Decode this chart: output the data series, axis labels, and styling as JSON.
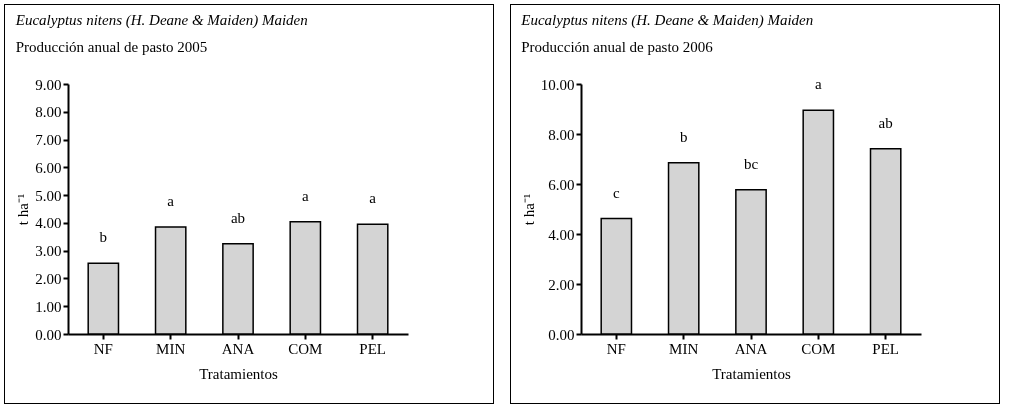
{
  "chart_data": [
    {
      "type": "bar",
      "title": "Eucalyptus nitens (H. Deane & Maiden) Maiden",
      "subtitle": "Producción anual de pasto 2005",
      "xlabel": "Tratamientos",
      "ylabel": "t ha⁻¹",
      "categories": [
        "NF",
        "MIN",
        "ANA",
        "COM",
        "PEL"
      ],
      "values": [
        2.55,
        3.85,
        3.25,
        4.04,
        3.95
      ],
      "color": "#d4d4d4",
      "ylim": [
        0,
        9
      ],
      "yticks": [
        {
          "value": 0,
          "label": "0.00"
        },
        {
          "value": 1,
          "label": "1.00"
        },
        {
          "value": 2,
          "label": "2.00"
        },
        {
          "value": 3,
          "label": "3.00"
        },
        {
          "value": 4,
          "label": "4.00"
        },
        {
          "value": 5,
          "label": "5.00"
        },
        {
          "value": 6,
          "label": "6.00"
        },
        {
          "value": 7,
          "label": "7.00"
        },
        {
          "value": 8,
          "label": "8.00"
        },
        {
          "value": 9,
          "label": "9.00"
        }
      ],
      "annotations": [
        "b",
        "a",
        "ab",
        "a",
        "a"
      ]
    },
    {
      "type": "bar",
      "title": "Eucalyptus nitens (H. Deane & Maiden) Maiden",
      "subtitle": "Producción anual de pasto 2006",
      "xlabel": "Tratamientos",
      "ylabel": "t ha⁻¹",
      "categories": [
        "NF",
        "MIN",
        "ANA",
        "COM",
        "PEL"
      ],
      "values": [
        4.62,
        6.85,
        5.77,
        8.95,
        7.41
      ],
      "color": "#d4d4d4",
      "ylim": [
        0,
        10
      ],
      "yticks": [
        {
          "value": 0,
          "label": "0.00"
        },
        {
          "value": 2,
          "label": "2.00"
        },
        {
          "value": 4,
          "label": "4.00"
        },
        {
          "value": 6,
          "label": "6.00"
        },
        {
          "value": 8,
          "label": "8.00"
        },
        {
          "value": 10,
          "label": "10.00"
        }
      ],
      "annotations": [
        "c",
        "b",
        "bc",
        "a",
        "ab"
      ]
    }
  ]
}
